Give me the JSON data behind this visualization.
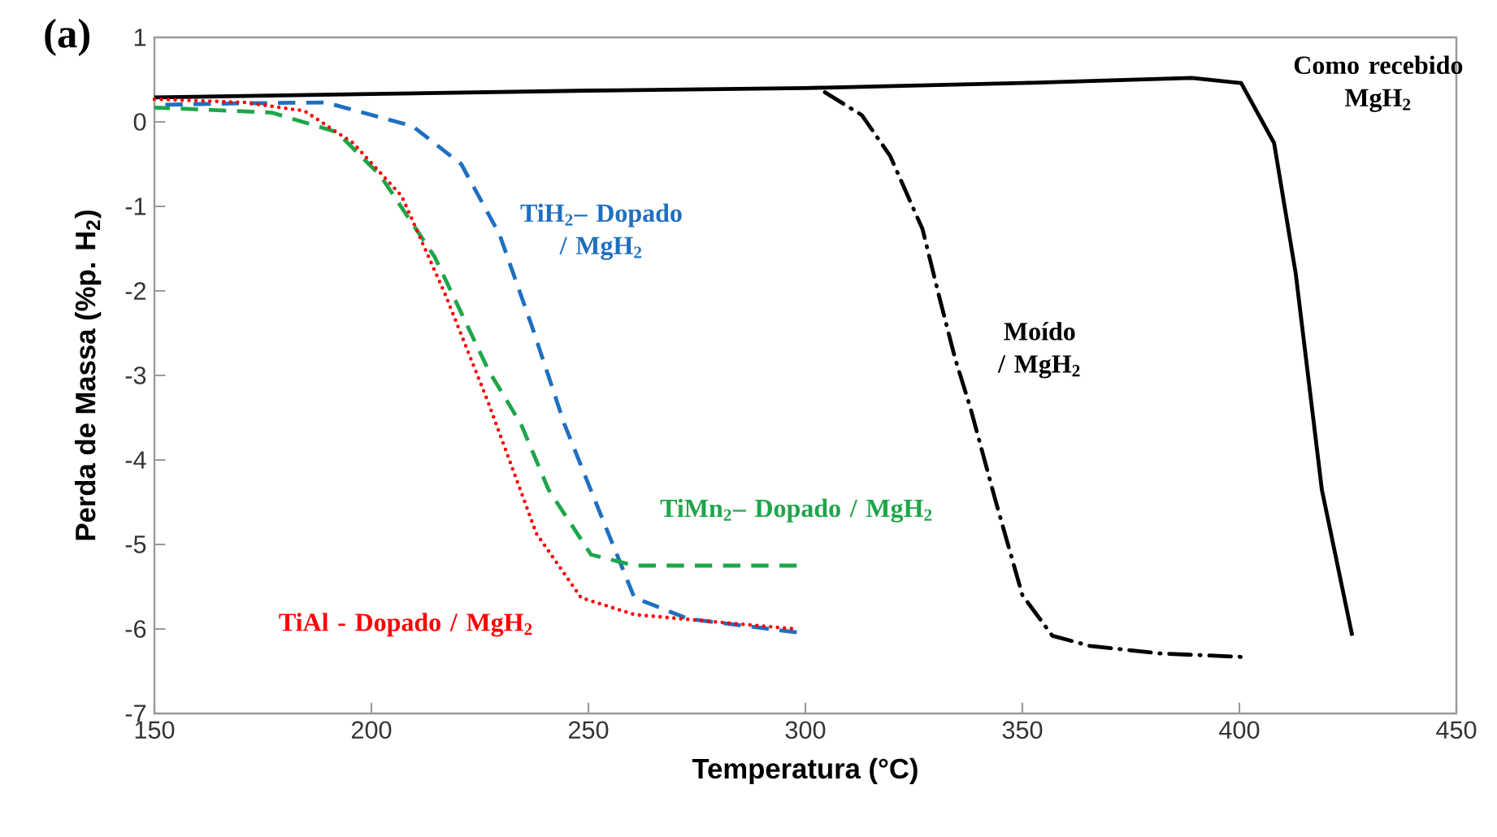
{
  "chart_data": {
    "type": "line",
    "xlabel": "Temperatura (°C)",
    "ylabel": "Perda de Massa  (%p. H$_{2}$)",
    "annotations": [
      "(a)"
    ],
    "xlim": [
      150,
      450
    ],
    "ylim": [
      -7,
      1
    ],
    "xticks": [
      150,
      200,
      250,
      300,
      350,
      400,
      450
    ],
    "yticks": [
      -7,
      -6,
      -5,
      -4,
      -3,
      -2,
      -1,
      0,
      1
    ],
    "series": [
      {
        "name": "Como recebido MgH$_{2}$",
        "color": "#000000",
        "line_style": "solid",
        "x": [
          150,
          200,
          250,
          300,
          350,
          389,
          400.4,
          408,
          413,
          419,
          426
        ],
        "values": [
          0.29,
          0.33,
          0.37,
          0.4,
          0.46,
          0.52,
          0.46,
          -0.25,
          -1.8,
          -4.35,
          -6.08
        ]
      },
      {
        "name": "Moído / MgH$_{2}$",
        "color": "#000000",
        "line_style": "dashdot",
        "x": [
          304.5,
          313,
          319.5,
          327,
          330.7,
          334.5,
          338,
          343.8,
          350,
          356.9,
          365.5,
          381.8,
          400.4
        ],
        "values": [
          0.35,
          0.08,
          -0.4,
          -1.27,
          -2.04,
          -2.8,
          -3.38,
          -4.48,
          -5.6,
          -6.08,
          -6.2,
          -6.29,
          -6.33
        ]
      },
      {
        "name": "TiH$_{2}$– Dopado / MgH$_{2}$",
        "color": "#1f6fc0",
        "line_style": "dashed",
        "x": [
          150,
          170,
          189.5,
          209.5,
          220.7,
          229.5,
          237,
          244.5,
          252,
          260.6,
          273,
          298
        ],
        "values": [
          0.2,
          0.22,
          0.23,
          -0.05,
          -0.5,
          -1.33,
          -2.42,
          -3.58,
          -4.54,
          -5.63,
          -5.88,
          -6.04
        ]
      },
      {
        "name": "TiMn$_{2}$– Dopado / MgH$_{2}$",
        "color": "#1ea54a",
        "line_style": "dashed",
        "x": [
          150,
          177,
          192,
          202,
          214.6,
          227,
          234.5,
          240.8,
          250.6,
          260.6,
          298
        ],
        "values": [
          0.17,
          0.11,
          -0.12,
          -0.63,
          -1.6,
          -2.94,
          -3.58,
          -4.35,
          -5.12,
          -5.25,
          -5.25
        ]
      },
      {
        "name": "TiAl - Dopado / MgH$_{2}$",
        "color": "#ff0000",
        "line_style": "dotted",
        "x": [
          150,
          170.8,
          184.6,
          195.8,
          207,
          217,
          227,
          238,
          248.3,
          260.6,
          298
        ],
        "values": [
          0.27,
          0.23,
          0.13,
          -0.25,
          -0.88,
          -2.04,
          -3.33,
          -4.87,
          -5.63,
          -5.83,
          -6.0
        ]
      }
    ]
  }
}
